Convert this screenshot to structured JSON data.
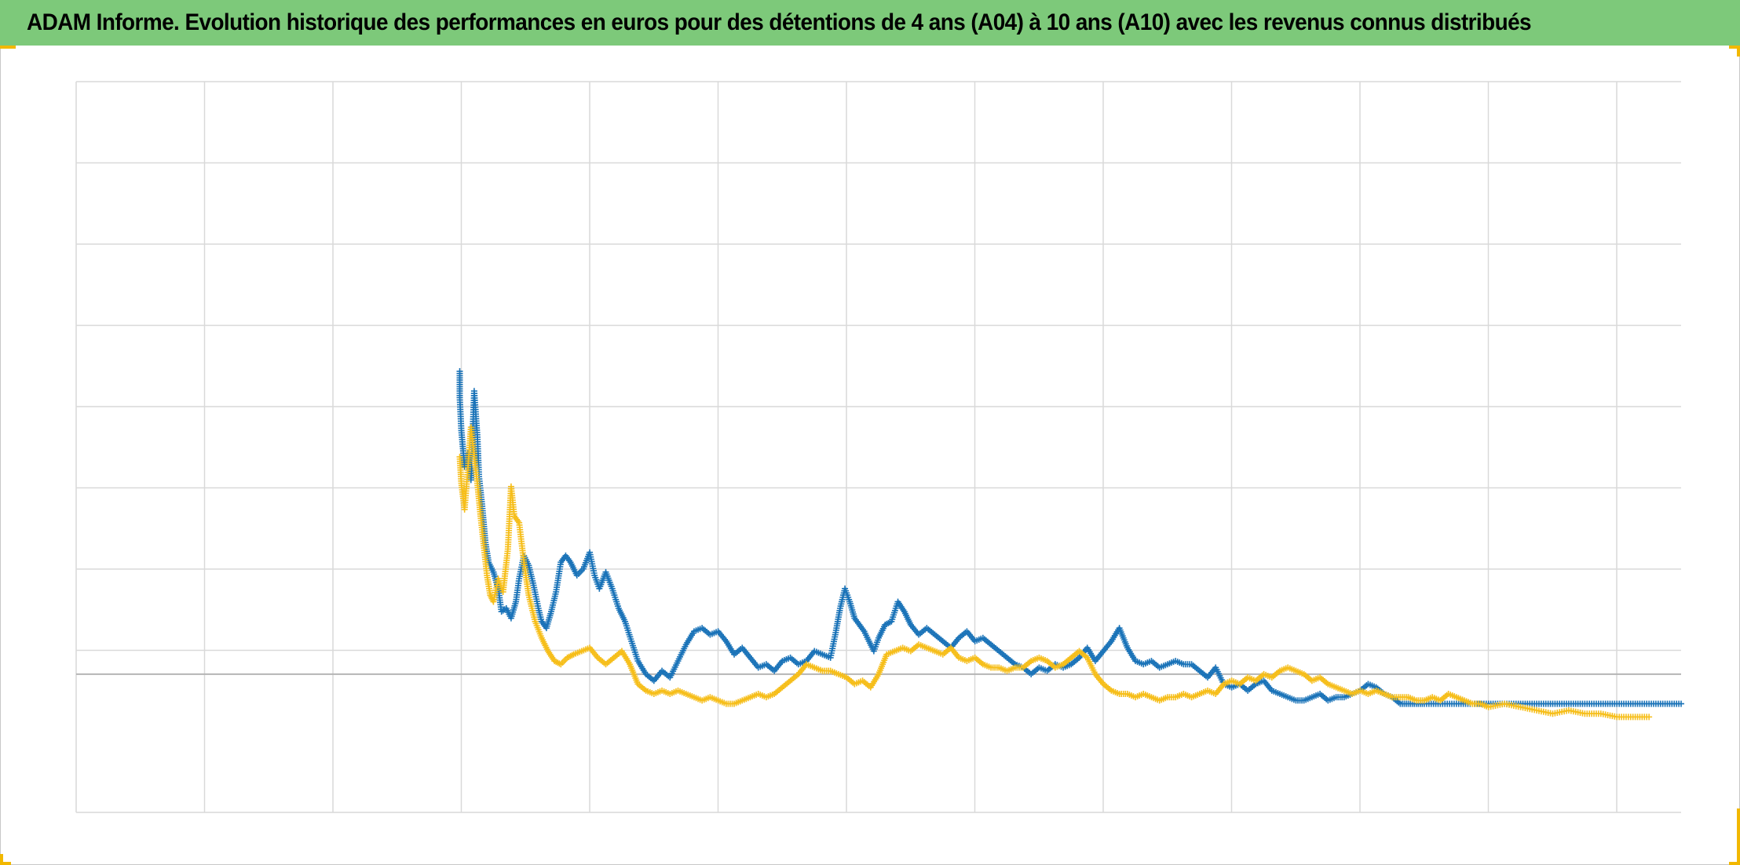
{
  "header": {
    "title": "ADAM Informe. Evolution historique des performances en euros pour des détentions de 4 ans (A04) à 10 ans (A10) avec les revenus connus distribués"
  },
  "colors": {
    "title_background": "#7dc97a",
    "series_blue": "#1a73b8",
    "series_yellow": "#f6be1a",
    "grid": "#d9d9d9",
    "accent_corners": "#f2b800"
  },
  "chart_data": {
    "type": "scatter",
    "title": "ADAM Informe. Evolution historique des performances en euros pour des détentions de 4 ans (A04) à 10 ans (A10) avec les revenus connus distribués",
    "marker": "plus",
    "xlabel": "",
    "ylabel": "",
    "tick_labels_visible": false,
    "legend": "none",
    "grid": true,
    "xlim": [
      0,
      100
    ],
    "ylim": [
      -4.2,
      18
    ],
    "baseline_y": 0,
    "series": [
      {
        "color": "#1a73b8",
        "points": [
          [
            23.9,
            9.2
          ],
          [
            23.9,
            8.4
          ],
          [
            24.0,
            7.4
          ],
          [
            24.2,
            6.3
          ],
          [
            24.4,
            6.7
          ],
          [
            24.6,
            5.9
          ],
          [
            24.8,
            8.6
          ],
          [
            25.0,
            7.2
          ],
          [
            25.1,
            6.0
          ],
          [
            25.3,
            5.1
          ],
          [
            25.5,
            4.0
          ],
          [
            25.7,
            3.4
          ],
          [
            26.0,
            3.1
          ],
          [
            26.3,
            2.6
          ],
          [
            26.5,
            1.9
          ],
          [
            26.8,
            2.0
          ],
          [
            27.1,
            1.7
          ],
          [
            27.4,
            2.2
          ],
          [
            27.6,
            2.9
          ],
          [
            27.9,
            3.6
          ],
          [
            28.2,
            3.3
          ],
          [
            28.5,
            2.7
          ],
          [
            28.8,
            2.0
          ],
          [
            29.0,
            1.6
          ],
          [
            29.3,
            1.4
          ],
          [
            29.6,
            1.9
          ],
          [
            29.9,
            2.5
          ],
          [
            30.2,
            3.4
          ],
          [
            30.5,
            3.6
          ],
          [
            30.8,
            3.4
          ],
          [
            31.2,
            3.0
          ],
          [
            31.6,
            3.2
          ],
          [
            32.0,
            3.7
          ],
          [
            32.3,
            3.0
          ],
          [
            32.6,
            2.6
          ],
          [
            33.0,
            3.1
          ],
          [
            33.4,
            2.6
          ],
          [
            33.8,
            2.0
          ],
          [
            34.2,
            1.6
          ],
          [
            34.6,
            1.0
          ],
          [
            35.0,
            0.4
          ],
          [
            35.5,
            0.0
          ],
          [
            36.0,
            -0.2
          ],
          [
            36.5,
            0.1
          ],
          [
            37.0,
            -0.1
          ],
          [
            37.5,
            0.4
          ],
          [
            38.0,
            0.9
          ],
          [
            38.5,
            1.3
          ],
          [
            39.0,
            1.4
          ],
          [
            39.5,
            1.2
          ],
          [
            40.0,
            1.3
          ],
          [
            40.5,
            1.0
          ],
          [
            41.0,
            0.6
          ],
          [
            41.5,
            0.8
          ],
          [
            42.0,
            0.5
          ],
          [
            42.5,
            0.2
          ],
          [
            43.0,
            0.3
          ],
          [
            43.5,
            0.1
          ],
          [
            44.0,
            0.4
          ],
          [
            44.5,
            0.5
          ],
          [
            45.0,
            0.3
          ],
          [
            45.5,
            0.4
          ],
          [
            46.0,
            0.7
          ],
          [
            46.5,
            0.6
          ],
          [
            47.0,
            0.5
          ],
          [
            47.3,
            1.2
          ],
          [
            47.6,
            2.0
          ],
          [
            47.9,
            2.6
          ],
          [
            48.2,
            2.2
          ],
          [
            48.5,
            1.7
          ],
          [
            48.8,
            1.5
          ],
          [
            49.1,
            1.3
          ],
          [
            49.4,
            1.0
          ],
          [
            49.7,
            0.7
          ],
          [
            50.0,
            1.1
          ],
          [
            50.4,
            1.5
          ],
          [
            50.8,
            1.6
          ],
          [
            51.2,
            2.2
          ],
          [
            51.6,
            1.9
          ],
          [
            52.0,
            1.5
          ],
          [
            52.5,
            1.2
          ],
          [
            53.0,
            1.4
          ],
          [
            53.5,
            1.2
          ],
          [
            54.0,
            1.0
          ],
          [
            54.5,
            0.8
          ],
          [
            55.0,
            1.1
          ],
          [
            55.5,
            1.3
          ],
          [
            56.0,
            1.0
          ],
          [
            56.5,
            1.1
          ],
          [
            57.0,
            0.9
          ],
          [
            57.5,
            0.7
          ],
          [
            58.0,
            0.5
          ],
          [
            58.5,
            0.3
          ],
          [
            59.0,
            0.2
          ],
          [
            59.5,
            0.0
          ],
          [
            60.0,
            0.2
          ],
          [
            60.5,
            0.1
          ],
          [
            61.0,
            0.3
          ],
          [
            61.5,
            0.2
          ],
          [
            62.0,
            0.3
          ],
          [
            62.5,
            0.5
          ],
          [
            63.0,
            0.8
          ],
          [
            63.5,
            0.4
          ],
          [
            64.0,
            0.7
          ],
          [
            64.5,
            1.0
          ],
          [
            65.0,
            1.4
          ],
          [
            65.5,
            0.8
          ],
          [
            66.0,
            0.4
          ],
          [
            66.5,
            0.3
          ],
          [
            67.0,
            0.4
          ],
          [
            67.5,
            0.2
          ],
          [
            68.0,
            0.3
          ],
          [
            68.5,
            0.4
          ],
          [
            69.0,
            0.3
          ],
          [
            69.5,
            0.3
          ],
          [
            70.0,
            0.1
          ],
          [
            70.5,
            -0.1
          ],
          [
            71.0,
            0.2
          ],
          [
            71.5,
            -0.3
          ],
          [
            72.0,
            -0.4
          ],
          [
            72.5,
            -0.3
          ],
          [
            73.0,
            -0.5
          ],
          [
            73.5,
            -0.3
          ],
          [
            74.0,
            -0.2
          ],
          [
            74.5,
            -0.5
          ],
          [
            75.0,
            -0.6
          ],
          [
            75.5,
            -0.7
          ],
          [
            76.0,
            -0.8
          ],
          [
            76.5,
            -0.8
          ],
          [
            77.0,
            -0.7
          ],
          [
            77.5,
            -0.6
          ],
          [
            78.0,
            -0.8
          ],
          [
            78.5,
            -0.7
          ],
          [
            79.0,
            -0.7
          ],
          [
            79.5,
            -0.6
          ],
          [
            80.0,
            -0.5
          ],
          [
            80.5,
            -0.3
          ],
          [
            81.0,
            -0.4
          ],
          [
            81.5,
            -0.6
          ],
          [
            82.0,
            -0.7
          ],
          [
            82.5,
            -0.9
          ],
          [
            83.0,
            -0.9
          ],
          [
            83.5,
            -0.9
          ],
          [
            84.0,
            -0.9
          ],
          [
            85.0,
            -0.9
          ],
          [
            86.0,
            -0.9
          ],
          [
            87.0,
            -0.9
          ],
          [
            88.0,
            -0.9
          ],
          [
            89.0,
            -0.9
          ],
          [
            90.0,
            -0.9
          ],
          [
            91.0,
            -0.9
          ],
          [
            92.0,
            -0.9
          ],
          [
            93.0,
            -0.9
          ],
          [
            94.0,
            -0.9
          ],
          [
            95.0,
            -0.9
          ],
          [
            96.0,
            -0.9
          ],
          [
            97.0,
            -0.9
          ],
          [
            98.0,
            -0.9
          ],
          [
            99.0,
            -0.9
          ],
          [
            100.0,
            -0.9
          ]
        ]
      },
      {
        "color": "#f6be1a",
        "points": [
          [
            23.9,
            6.6
          ],
          [
            24.0,
            5.8
          ],
          [
            24.2,
            5.0
          ],
          [
            24.4,
            6.2
          ],
          [
            24.6,
            7.5
          ],
          [
            24.8,
            6.6
          ],
          [
            25.0,
            5.8
          ],
          [
            25.2,
            4.8
          ],
          [
            25.4,
            3.9
          ],
          [
            25.6,
            3.0
          ],
          [
            25.8,
            2.4
          ],
          [
            26.0,
            2.2
          ],
          [
            26.3,
            2.9
          ],
          [
            26.6,
            2.5
          ],
          [
            26.9,
            3.8
          ],
          [
            27.1,
            5.7
          ],
          [
            27.3,
            4.8
          ],
          [
            27.6,
            4.6
          ],
          [
            27.9,
            3.4
          ],
          [
            28.2,
            2.4
          ],
          [
            28.6,
            1.6
          ],
          [
            29.0,
            1.1
          ],
          [
            29.4,
            0.7
          ],
          [
            29.8,
            0.4
          ],
          [
            30.2,
            0.3
          ],
          [
            30.6,
            0.5
          ],
          [
            31.0,
            0.6
          ],
          [
            31.5,
            0.7
          ],
          [
            32.0,
            0.8
          ],
          [
            32.5,
            0.5
          ],
          [
            33.0,
            0.3
          ],
          [
            33.5,
            0.5
          ],
          [
            34.0,
            0.7
          ],
          [
            34.5,
            0.3
          ],
          [
            35.0,
            -0.3
          ],
          [
            35.5,
            -0.5
          ],
          [
            36.0,
            -0.6
          ],
          [
            36.5,
            -0.5
          ],
          [
            37.0,
            -0.6
          ],
          [
            37.5,
            -0.5
          ],
          [
            38.0,
            -0.6
          ],
          [
            38.5,
            -0.7
          ],
          [
            39.0,
            -0.8
          ],
          [
            39.5,
            -0.7
          ],
          [
            40.0,
            -0.8
          ],
          [
            40.5,
            -0.9
          ],
          [
            41.0,
            -0.9
          ],
          [
            41.5,
            -0.8
          ],
          [
            42.0,
            -0.7
          ],
          [
            42.5,
            -0.6
          ],
          [
            43.0,
            -0.7
          ],
          [
            43.5,
            -0.6
          ],
          [
            44.0,
            -0.4
          ],
          [
            44.5,
            -0.2
          ],
          [
            45.0,
            0.0
          ],
          [
            45.5,
            0.3
          ],
          [
            46.0,
            0.2
          ],
          [
            46.5,
            0.1
          ],
          [
            47.0,
            0.1
          ],
          [
            47.5,
            0.0
          ],
          [
            48.0,
            -0.1
          ],
          [
            48.5,
            -0.3
          ],
          [
            49.0,
            -0.2
          ],
          [
            49.5,
            -0.4
          ],
          [
            50.0,
            0.0
          ],
          [
            50.5,
            0.6
          ],
          [
            51.0,
            0.7
          ],
          [
            51.5,
            0.8
          ],
          [
            52.0,
            0.7
          ],
          [
            52.5,
            0.9
          ],
          [
            53.0,
            0.8
          ],
          [
            53.5,
            0.7
          ],
          [
            54.0,
            0.6
          ],
          [
            54.5,
            0.8
          ],
          [
            55.0,
            0.5
          ],
          [
            55.5,
            0.4
          ],
          [
            56.0,
            0.5
          ],
          [
            56.5,
            0.3
          ],
          [
            57.0,
            0.2
          ],
          [
            57.5,
            0.2
          ],
          [
            58.0,
            0.1
          ],
          [
            58.5,
            0.2
          ],
          [
            59.0,
            0.2
          ],
          [
            59.5,
            0.4
          ],
          [
            60.0,
            0.5
          ],
          [
            60.5,
            0.4
          ],
          [
            61.0,
            0.2
          ],
          [
            61.5,
            0.3
          ],
          [
            62.0,
            0.5
          ],
          [
            62.5,
            0.7
          ],
          [
            63.0,
            0.5
          ],
          [
            63.5,
            0.0
          ],
          [
            64.0,
            -0.3
          ],
          [
            64.5,
            -0.5
          ],
          [
            65.0,
            -0.6
          ],
          [
            65.5,
            -0.6
          ],
          [
            66.0,
            -0.7
          ],
          [
            66.5,
            -0.6
          ],
          [
            67.0,
            -0.7
          ],
          [
            67.5,
            -0.8
          ],
          [
            68.0,
            -0.7
          ],
          [
            68.5,
            -0.7
          ],
          [
            69.0,
            -0.6
          ],
          [
            69.5,
            -0.7
          ],
          [
            70.0,
            -0.6
          ],
          [
            70.5,
            -0.5
          ],
          [
            71.0,
            -0.6
          ],
          [
            71.5,
            -0.3
          ],
          [
            72.0,
            -0.2
          ],
          [
            72.5,
            -0.3
          ],
          [
            73.0,
            -0.1
          ],
          [
            73.5,
            -0.2
          ],
          [
            74.0,
            0.0
          ],
          [
            74.5,
            -0.1
          ],
          [
            75.0,
            0.1
          ],
          [
            75.5,
            0.2
          ],
          [
            76.0,
            0.1
          ],
          [
            76.5,
            0.0
          ],
          [
            77.0,
            -0.2
          ],
          [
            77.5,
            -0.1
          ],
          [
            78.0,
            -0.3
          ],
          [
            78.5,
            -0.4
          ],
          [
            79.0,
            -0.5
          ],
          [
            79.5,
            -0.6
          ],
          [
            80.0,
            -0.5
          ],
          [
            80.5,
            -0.6
          ],
          [
            81.0,
            -0.5
          ],
          [
            81.5,
            -0.6
          ],
          [
            82.0,
            -0.7
          ],
          [
            82.5,
            -0.7
          ],
          [
            83.0,
            -0.7
          ],
          [
            83.5,
            -0.8
          ],
          [
            84.0,
            -0.8
          ],
          [
            84.5,
            -0.7
          ],
          [
            85.0,
            -0.8
          ],
          [
            85.5,
            -0.6
          ],
          [
            86.0,
            -0.7
          ],
          [
            86.5,
            -0.8
          ],
          [
            87.0,
            -0.9
          ],
          [
            87.5,
            -0.9
          ],
          [
            88.0,
            -1.0
          ],
          [
            89.0,
            -0.9
          ],
          [
            90.0,
            -1.0
          ],
          [
            91.0,
            -1.1
          ],
          [
            92.0,
            -1.2
          ],
          [
            93.0,
            -1.1
          ],
          [
            94.0,
            -1.2
          ],
          [
            95.0,
            -1.2
          ],
          [
            96.0,
            -1.3
          ],
          [
            97.0,
            -1.3
          ],
          [
            98.0,
            -1.3
          ]
        ]
      }
    ]
  }
}
